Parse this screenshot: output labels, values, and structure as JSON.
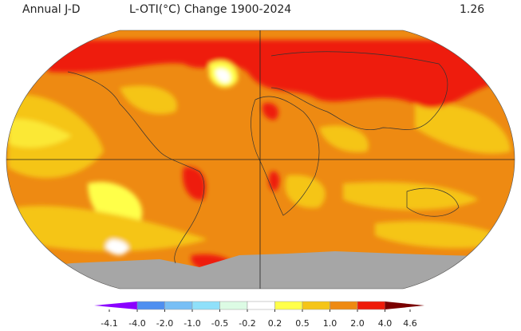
{
  "header": {
    "left": "Annual J-D",
    "title": "L-OTI(°C) Change 1900-2024",
    "value": "1.26"
  },
  "colorbar": {
    "ticks": [
      "-4.1",
      "-4.0",
      "-2.0",
      "-1.0",
      "-0.5",
      "-0.2",
      "0.2",
      "0.5",
      "1.0",
      "2.0",
      "4.0",
      "4.6"
    ],
    "colors": [
      "#8a00ff",
      "#4f8ff0",
      "#78bff5",
      "#8fe0fa",
      "#dcfbe4",
      "#ffffff",
      "#ffff4a",
      "#f5c518",
      "#ee8a12",
      "#ee1b0a",
      "#7a0000"
    ]
  },
  "map": {
    "land_missing_color": "#a6a6a6",
    "ocean_base_color": "#f09020",
    "projection": "robinson"
  }
}
